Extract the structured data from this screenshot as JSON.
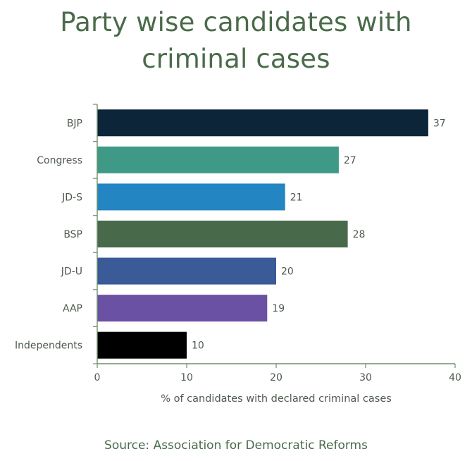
{
  "chart_data": {
    "type": "bar",
    "orientation": "horizontal",
    "title": "Party wise candidates with criminal cases",
    "xlabel": "% of candidates with declared criminal cases",
    "ylabel": "",
    "categories": [
      "BJP",
      "Congress",
      "JD-S",
      "BSP",
      "JD-U",
      "AAP",
      "Independents"
    ],
    "values": [
      37,
      27,
      21,
      28,
      20,
      19,
      10
    ],
    "bar_colors": [
      "#0d2538",
      "#3e9a87",
      "#2385c2",
      "#48694a",
      "#3a5a98",
      "#6b51a3",
      "#000000"
    ],
    "xlim": [
      0,
      40
    ],
    "xticks": [
      0,
      10,
      20,
      30,
      40
    ],
    "grid": false,
    "legend": "none",
    "data_labels": true
  },
  "title_lines": [
    "Party wise candidates with",
    "criminal cases"
  ],
  "source": "Source: Association for Democratic Reforms",
  "colors": {
    "title": "#4a6b4a",
    "axis": "#6f8f6f",
    "text": "#4f5a4f"
  }
}
